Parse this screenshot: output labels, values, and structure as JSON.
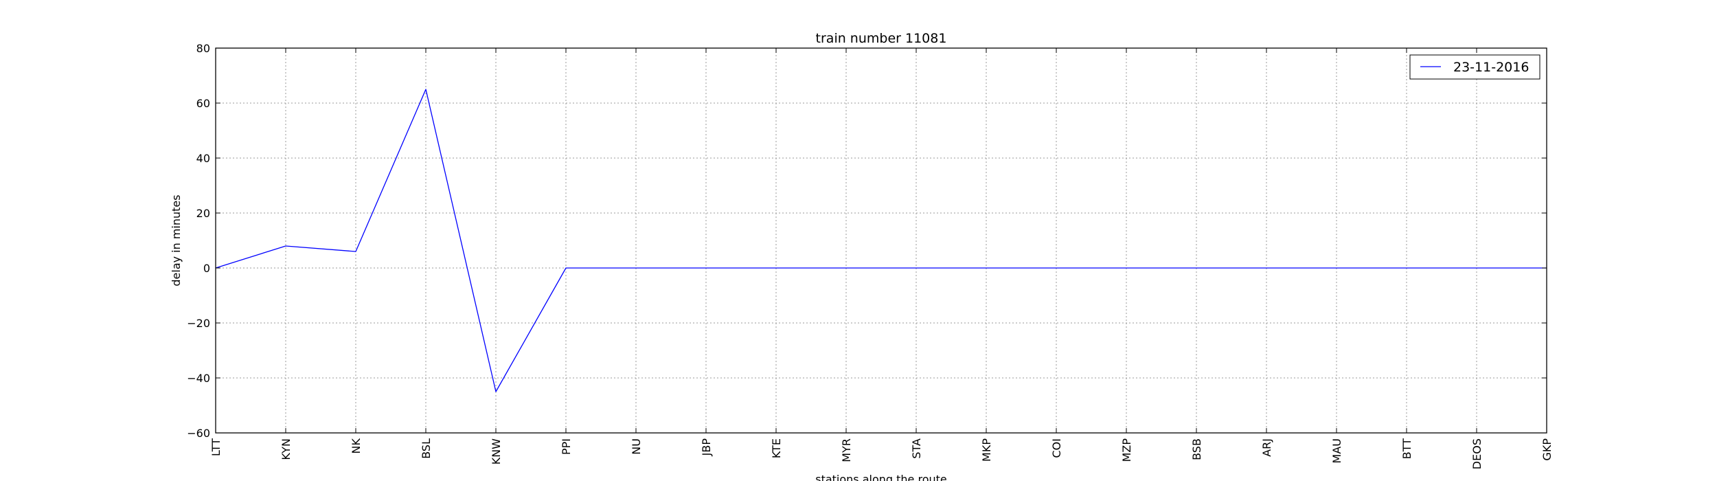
{
  "chart_data": {
    "type": "line",
    "title": "train number 11081",
    "xlabel": "stations along the route",
    "ylabel": "delay in minutes",
    "categories": [
      "LTT",
      "KYN",
      "NK",
      "BSL",
      "KNW",
      "PPI",
      "NU",
      "JBP",
      "KTE",
      "MYR",
      "STA",
      "MKP",
      "COI",
      "MZP",
      "BSB",
      "ARJ",
      "MAU",
      "BTT",
      "DEOS",
      "GKP"
    ],
    "series": [
      {
        "name": "23-11-2016",
        "color": "#0000ff",
        "values": [
          0,
          8,
          6,
          65,
          -45,
          0,
          0,
          0,
          0,
          0,
          0,
          0,
          0,
          0,
          0,
          0,
          0,
          0,
          0,
          0
        ]
      }
    ],
    "ylim": [
      -60,
      80
    ],
    "yticks": [
      -60,
      -40,
      -20,
      0,
      20,
      40,
      60,
      80
    ],
    "ytick_labels": [
      "−60",
      "−40",
      "−20",
      "0",
      "20",
      "40",
      "60",
      "80"
    ],
    "grid": true,
    "legend_position": "top-right"
  }
}
